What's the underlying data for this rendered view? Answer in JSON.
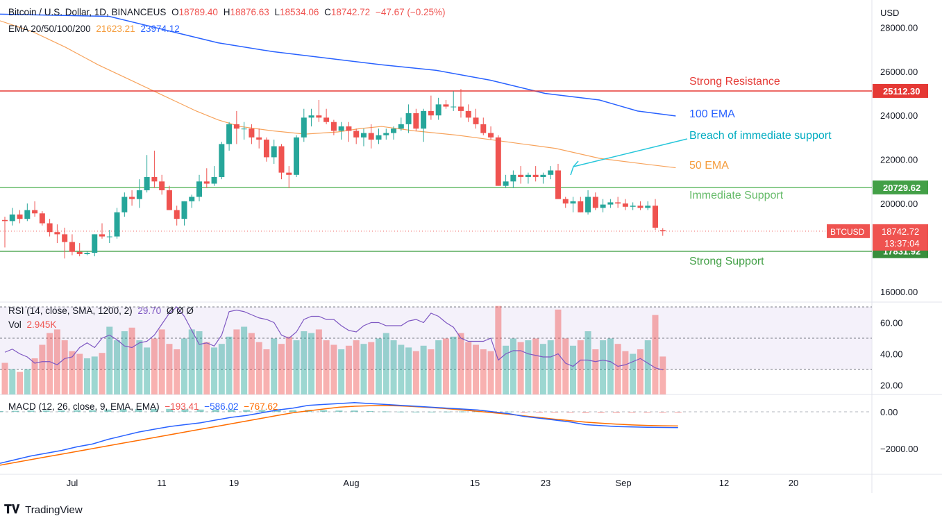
{
  "header": {
    "symbol": "Bitcoin / U.S. Dollar, 1D, BINANCEUS",
    "o_label": "O",
    "o_value": "18789.40",
    "h_label": "H",
    "h_value": "18876.63",
    "l_label": "L",
    "l_value": "18534.06",
    "c_label": "C",
    "c_value": "18742.72",
    "change": "−47.67 (−0.25%)",
    "ema_label": "EMA 20/50/100/200",
    "ema50_value": "21623.21",
    "ema100_value": "23974.12"
  },
  "axis": {
    "currency": "USD",
    "price_ticks": [
      "28000.00",
      "26000.00",
      "24000.00",
      "22000.00",
      "20000.00",
      "16000.00"
    ],
    "rsi_ticks": [
      "60.00",
      "40.00",
      "20.00"
    ],
    "macd_ticks": [
      "0.00",
      "−2000.00"
    ],
    "x_labels": [
      "Jul",
      "11",
      "19",
      "Aug",
      "15",
      "23",
      "Sep",
      "12",
      "20"
    ]
  },
  "annotations": {
    "strong_resistance": "Strong Resistance",
    "ema100": "100 EMA",
    "breach": "Breach of immediate support",
    "ema50": "50 EMA",
    "immediate_support": "Immediate Support",
    "strong_support": "Strong Support"
  },
  "levels": {
    "resistance": "25112.30",
    "immediate": "20729.62",
    "strong": "17831.92",
    "ticker": "BTCUSD",
    "last": "18742.72",
    "countdown": "13:37:04"
  },
  "rsi_panel": {
    "label": "RSI (14, close, SMA, 1200, 2)",
    "value": "29.70",
    "extras": "Ø  Ø  Ø",
    "vol_label": "Vol",
    "vol_value": "2.945K"
  },
  "macd_panel": {
    "label": "MACD (12, 26, close, 9, EMA, EMA)",
    "v1": "−193.41",
    "v2": "−586.02",
    "v3": "−767.62"
  },
  "footer": {
    "brand": "TradingView"
  },
  "colors": {
    "up": "#26a69a",
    "down": "#ef5350",
    "resistance": "#e53935",
    "support": "#43a047",
    "ema100": "#2962ff",
    "ema50": "#f7a35c",
    "breach": "#26c6da",
    "rsi": "#7e57c2",
    "macd": "#2962ff",
    "signal": "#ff6d00"
  },
  "chart_data": {
    "type": "candlestick",
    "title": "Bitcoin / U.S. Dollar, 1D, BINANCEUS",
    "ylabel": "USD",
    "ylim": [
      15500,
      28500
    ],
    "candles": [
      [
        19250,
        19400,
        18000,
        19200
      ],
      [
        19200,
        19800,
        19000,
        19500
      ],
      [
        19500,
        19700,
        19100,
        19300
      ],
      [
        19300,
        20000,
        19200,
        19700
      ],
      [
        19700,
        20100,
        19400,
        19550
      ],
      [
        19550,
        19650,
        19000,
        19100
      ],
      [
        19100,
        19300,
        18500,
        18700
      ],
      [
        18700,
        19050,
        18200,
        18600
      ],
      [
        18600,
        18900,
        17500,
        18250
      ],
      [
        18250,
        18600,
        17650,
        17800
      ],
      [
        17800,
        18200,
        17600,
        17700
      ],
      [
        17700,
        17850,
        17650,
        17760
      ],
      [
        17760,
        18600,
        17600,
        18600
      ],
      [
        18600,
        19100,
        18400,
        18500
      ],
      [
        18500,
        18800,
        18200,
        18500
      ],
      [
        18500,
        19800,
        18400,
        19600
      ],
      [
        19600,
        20500,
        19400,
        20300
      ],
      [
        20300,
        20600,
        19900,
        20200
      ],
      [
        20200,
        21100,
        19800,
        20600
      ],
      [
        20600,
        22200,
        20500,
        21200
      ],
      [
        21200,
        22400,
        20700,
        21000
      ],
      [
        21000,
        21300,
        20400,
        20600
      ],
      [
        20600,
        20800,
        19700,
        19700
      ],
      [
        19700,
        19900,
        19000,
        19300
      ],
      [
        19300,
        20100,
        19000,
        20100
      ],
      [
        20100,
        20400,
        19800,
        20300
      ],
      [
        20300,
        21300,
        20100,
        21000
      ],
      [
        21000,
        21600,
        20700,
        20900
      ],
      [
        20900,
        21700,
        20800,
        21200
      ],
      [
        21200,
        22800,
        21100,
        22700
      ],
      [
        22700,
        23700,
        22400,
        23600
      ],
      [
        23600,
        24200,
        22700,
        23400
      ],
      [
        23400,
        23700,
        22900,
        23400
      ],
      [
        23400,
        23600,
        22700,
        23000
      ],
      [
        23000,
        23400,
        22500,
        22900
      ],
      [
        22900,
        23000,
        21900,
        22100
      ],
      [
        22100,
        22900,
        21800,
        22600
      ],
      [
        22600,
        22700,
        21100,
        21400
      ],
      [
        21400,
        21700,
        20700,
        21300
      ],
      [
        21300,
        23100,
        21200,
        23000
      ],
      [
        23000,
        24300,
        22800,
        23900
      ],
      [
        23900,
        24300,
        23500,
        24000
      ],
      [
        24000,
        24700,
        23700,
        23900
      ],
      [
        23900,
        24300,
        23600,
        23700
      ],
      [
        23700,
        23800,
        23100,
        23300
      ],
      [
        23300,
        23700,
        22900,
        23500
      ],
      [
        23500,
        23700,
        22800,
        23300
      ],
      [
        23300,
        23400,
        22700,
        23000
      ],
      [
        23000,
        23400,
        22600,
        23200
      ],
      [
        23200,
        23600,
        22500,
        22900
      ],
      [
        22900,
        23400,
        22700,
        23100
      ],
      [
        23100,
        23400,
        22900,
        23200
      ],
      [
        23200,
        23500,
        22900,
        23400
      ],
      [
        23400,
        23900,
        23300,
        23600
      ],
      [
        23600,
        24500,
        23200,
        24100
      ],
      [
        24100,
        24300,
        23300,
        23400
      ],
      [
        23400,
        24300,
        22800,
        24200
      ],
      [
        24200,
        24900,
        23800,
        24000
      ],
      [
        24000,
        24800,
        23800,
        24500
      ],
      [
        24500,
        24700,
        24300,
        24400
      ],
      [
        24400,
        25100,
        24200,
        24400
      ],
      [
        24400,
        25200,
        23900,
        24200
      ],
      [
        24200,
        24500,
        23700,
        23900
      ],
      [
        23900,
        24300,
        23400,
        23600
      ],
      [
        23600,
        23900,
        23100,
        23200
      ],
      [
        23200,
        23500,
        22900,
        23000
      ],
      [
        23000,
        23100,
        20800,
        20800
      ],
      [
        20800,
        21300,
        20700,
        21000
      ],
      [
        21000,
        21500,
        20700,
        21300
      ],
      [
        21300,
        21700,
        20900,
        21200
      ],
      [
        21200,
        21400,
        20900,
        21300
      ],
      [
        21300,
        21700,
        21000,
        21200
      ],
      [
        21200,
        21400,
        20900,
        21300
      ],
      [
        21300,
        21700,
        21100,
        21500
      ],
      [
        21500,
        21800,
        20300,
        20200
      ],
      [
        20200,
        20300,
        19800,
        20000
      ],
      [
        20000,
        20300,
        19600,
        20100
      ],
      [
        20100,
        20300,
        19600,
        19600
      ],
      [
        19600,
        20600,
        19500,
        20300
      ],
      [
        20300,
        20500,
        19700,
        19800
      ],
      [
        19800,
        20200,
        19600,
        19950
      ],
      [
        19950,
        20200,
        19800,
        20050
      ],
      [
        20050,
        20300,
        19800,
        20000
      ],
      [
        20000,
        20200,
        19700,
        19850
      ],
      [
        19850,
        20050,
        19700,
        19900
      ],
      [
        19900,
        20100,
        19700,
        19800
      ],
      [
        19800,
        20100,
        19700,
        19900
      ],
      [
        19900,
        20200,
        18800,
        18900
      ],
      [
        18790,
        18880,
        18530,
        18740
      ]
    ],
    "ema100": [
      [
        0,
        28600
      ],
      [
        20,
        28500
      ],
      [
        30,
        27900
      ],
      [
        40,
        27300
      ],
      [
        50,
        26900
      ],
      [
        60,
        26600
      ],
      [
        70,
        26300
      ],
      [
        80,
        26050
      ],
      [
        90,
        25600
      ],
      [
        100,
        25000
      ],
      [
        110,
        24700
      ],
      [
        117,
        24200
      ],
      [
        124,
        23974
      ]
    ],
    "ema50": [
      [
        0,
        28300
      ],
      [
        6,
        27800
      ],
      [
        12,
        27100
      ],
      [
        18,
        26300
      ],
      [
        24,
        25600
      ],
      [
        30,
        24900
      ],
      [
        36,
        24200
      ],
      [
        40,
        23800
      ],
      [
        44,
        23500
      ],
      [
        50,
        23300
      ],
      [
        56,
        23150
      ],
      [
        62,
        23250
      ],
      [
        66,
        23400
      ],
      [
        70,
        23500
      ],
      [
        76,
        23300
      ],
      [
        84,
        23100
      ],
      [
        90,
        22900
      ],
      [
        96,
        22700
      ],
      [
        102,
        22500
      ],
      [
        110,
        22050
      ],
      [
        118,
        21800
      ],
      [
        124,
        21623
      ]
    ],
    "levels": {
      "strong_resistance": 25112.3,
      "immediate_support": 20729.62,
      "strong_support": 17831.92,
      "last": 18742.72
    },
    "volume": [
      35,
      28,
      25,
      28,
      40,
      55,
      68,
      72,
      60,
      48,
      45,
      40,
      42,
      46,
      75,
      60,
      70,
      74,
      60,
      52,
      62,
      72,
      56,
      50,
      62,
      72,
      70,
      58,
      52,
      56,
      64,
      72,
      75,
      68,
      58,
      50,
      62,
      56,
      64,
      60,
      70,
      68,
      72,
      60,
      55,
      50,
      54,
      60,
      56,
      58,
      62,
      68,
      60,
      55,
      52,
      48,
      54,
      50,
      60,
      62,
      64,
      68,
      58,
      55,
      50,
      48,
      98,
      54,
      62,
      58,
      60,
      62,
      56,
      60,
      94,
      62,
      54,
      60,
      70,
      50,
      60,
      62,
      56,
      48,
      45,
      50,
      60,
      88,
      42
    ],
    "rsi": [
      41,
      43,
      40,
      38,
      34,
      35,
      35,
      33,
      37,
      38,
      44,
      47,
      44,
      50,
      52,
      49,
      45,
      44,
      47,
      48,
      52,
      59,
      66,
      70,
      64,
      55,
      46,
      47,
      45,
      52,
      67,
      68,
      67,
      65,
      63,
      62,
      60,
      52,
      50,
      54,
      62,
      64,
      64,
      62,
      62,
      58,
      55,
      54,
      58,
      60,
      60,
      58,
      58,
      58,
      61,
      62,
      60,
      66,
      64,
      60,
      57,
      50,
      48,
      48,
      48,
      50,
      36,
      40,
      42,
      42,
      40,
      39,
      38,
      38,
      40,
      34,
      32,
      36,
      36,
      35,
      36,
      35,
      32,
      33,
      35,
      37,
      34,
      31,
      29.7
    ],
    "macd": [
      -2800,
      -2600,
      -2400,
      -2250,
      -2100,
      -1900,
      -1750,
      -1500,
      -1300,
      -1100,
      -950,
      -800,
      -700,
      -600,
      -450,
      -300,
      -200,
      -50,
      100,
      200,
      350,
      400,
      450,
      500,
      450,
      400,
      350,
      300,
      250,
      200,
      150,
      100,
      0,
      -100,
      -250,
      -350,
      -450,
      -550,
      -700,
      -750,
      -800,
      -820,
      -840,
      -850,
      -860
    ],
    "signal": [
      -2900,
      -2750,
      -2600,
      -2450,
      -2300,
      -2150,
      -2000,
      -1850,
      -1700,
      -1550,
      -1400,
      -1250,
      -1100,
      -950,
      -800,
      -650,
      -500,
      -350,
      -200,
      -50,
      50,
      150,
      250,
      300,
      330,
      340,
      320,
      280,
      230,
      170,
      100,
      30,
      -50,
      -130,
      -220,
      -310,
      -400,
      -480,
      -560,
      -620,
      -670,
      -710,
      -740,
      -760,
      -768
    ]
  }
}
